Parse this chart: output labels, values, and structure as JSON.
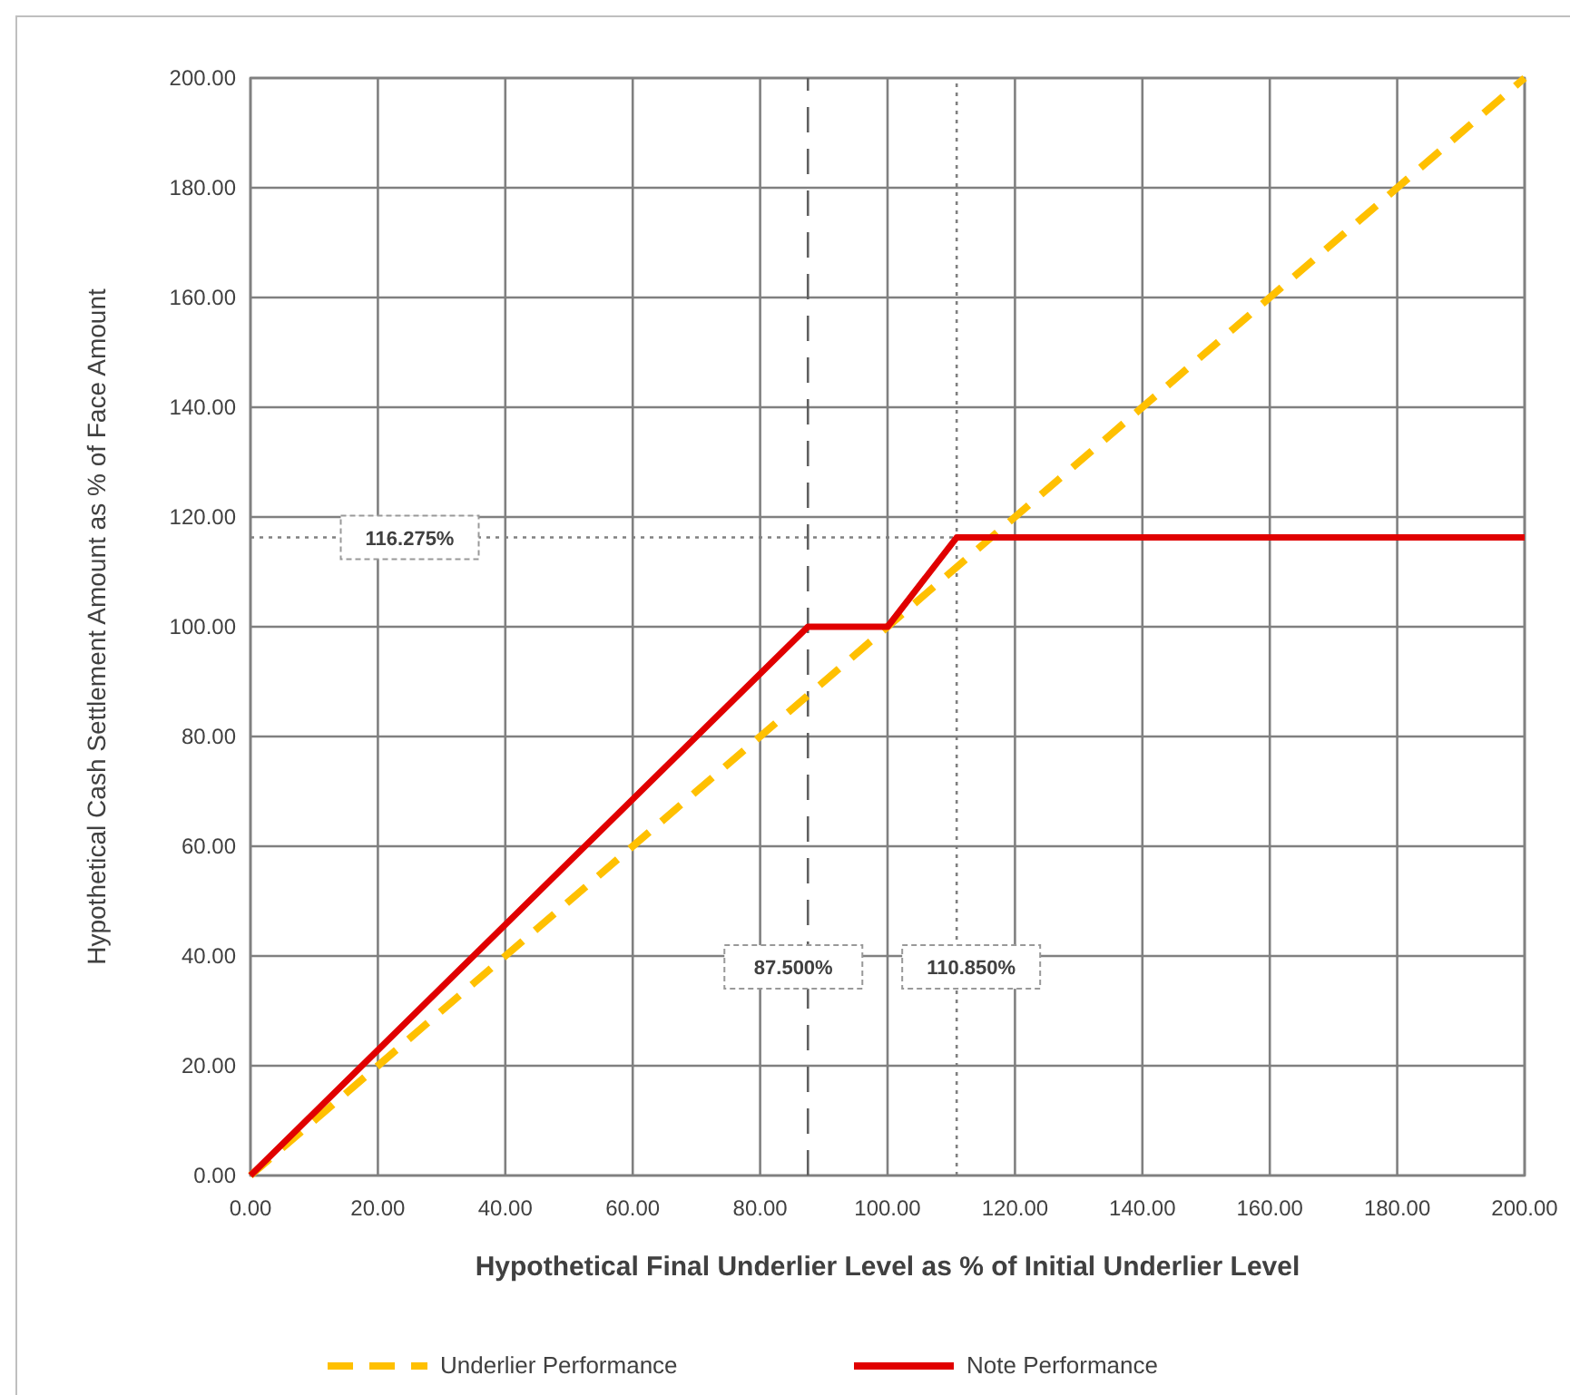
{
  "chart_data": {
    "type": "line",
    "xlabel": "Hypothetical Final Underlier Level as % of Initial Underlier Level",
    "ylabel": "Hypothetical Cash Settlement Amount as % of Face Amount",
    "xlim": [
      0,
      200
    ],
    "ylim": [
      0,
      200
    ],
    "xticks": [
      {
        "value": 0,
        "label": "0.00"
      },
      {
        "value": 20,
        "label": "20.00"
      },
      {
        "value": 40,
        "label": "40.00"
      },
      {
        "value": 60,
        "label": "60.00"
      },
      {
        "value": 80,
        "label": "80.00"
      },
      {
        "value": 100,
        "label": "100.00"
      },
      {
        "value": 120,
        "label": "120.00"
      },
      {
        "value": 140,
        "label": "140.00"
      },
      {
        "value": 160,
        "label": "160.00"
      },
      {
        "value": 180,
        "label": "180.00"
      },
      {
        "value": 200,
        "label": "200.00"
      }
    ],
    "yticks": [
      {
        "value": 0,
        "label": "0.00"
      },
      {
        "value": 20,
        "label": "20.00"
      },
      {
        "value": 40,
        "label": "40.00"
      },
      {
        "value": 60,
        "label": "60.00"
      },
      {
        "value": 80,
        "label": "80.00"
      },
      {
        "value": 100,
        "label": "100.00"
      },
      {
        "value": 120,
        "label": "120.00"
      },
      {
        "value": 140,
        "label": "140.00"
      },
      {
        "value": 160,
        "label": "160.00"
      },
      {
        "value": 180,
        "label": "180.00"
      },
      {
        "value": 200,
        "label": "200.00"
      }
    ],
    "grid": true,
    "legend": "bottom",
    "marker": "none",
    "series": [
      {
        "name": "Underlier Performance",
        "color": "#ffc000",
        "line_style": "dashed",
        "x": [
          0,
          200
        ],
        "values": [
          0,
          200
        ]
      },
      {
        "name": "Note Performance",
        "color": "#e00000",
        "line_style": "solid",
        "x": [
          0,
          87.5,
          100,
          110.85,
          200
        ],
        "values": [
          0,
          100,
          100,
          116.275,
          116.275
        ]
      }
    ],
    "ref_lines": [
      {
        "axis": "y",
        "value": 116.275,
        "label": "116.275%",
        "line_style": "dotted",
        "color": "#808080"
      },
      {
        "axis": "x",
        "value": 87.5,
        "label": "87.500%",
        "line_style": "dashed",
        "color": "#606060"
      },
      {
        "axis": "x",
        "value": 110.85,
        "label": "110.850%",
        "line_style": "dotted",
        "color": "#808080"
      }
    ]
  }
}
